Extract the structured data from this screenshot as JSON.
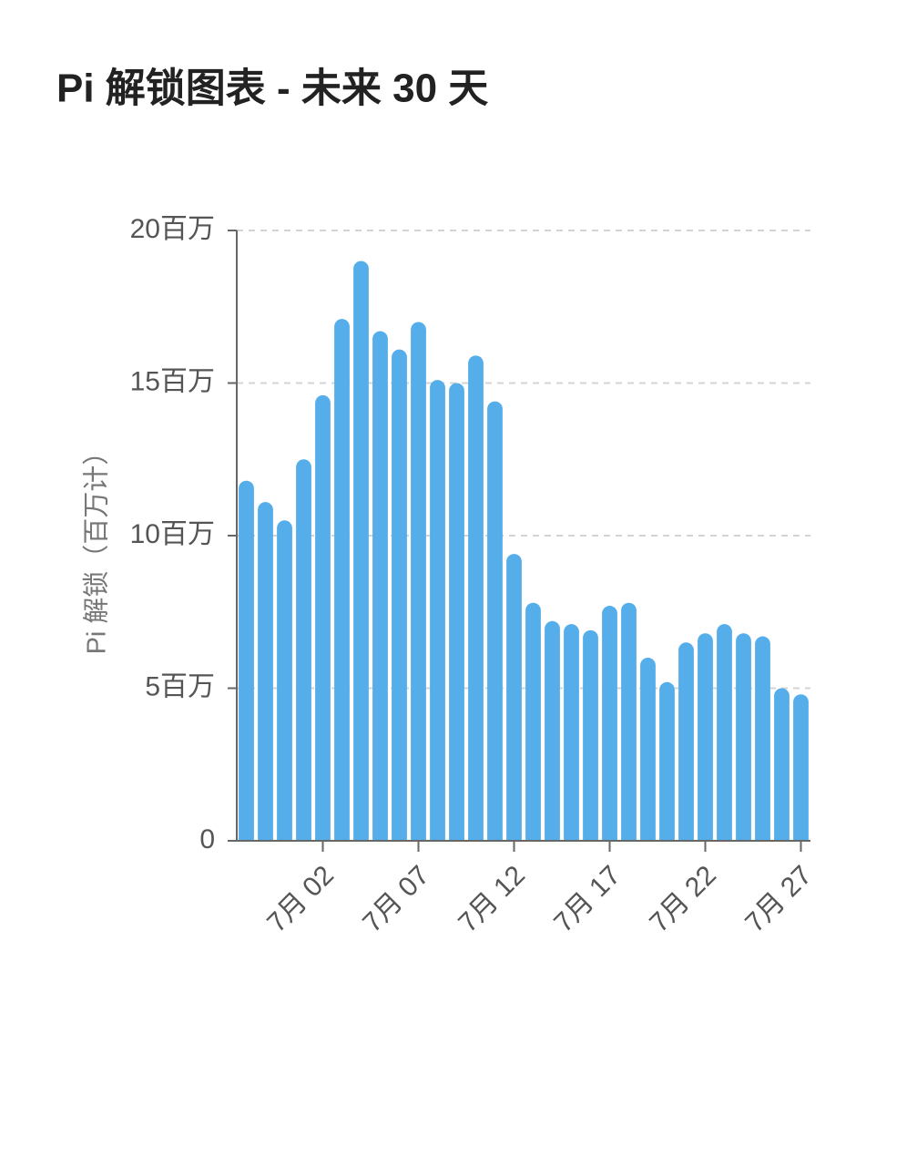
{
  "chart_data": {
    "type": "bar",
    "title": "Pi 解锁图表 - 未来 30 天",
    "y_label": "Pi 解锁（百万计）",
    "categories": [
      null,
      null,
      null,
      null,
      "7月 02",
      null,
      null,
      null,
      null,
      "7月 07",
      null,
      null,
      null,
      null,
      "7月 12",
      null,
      null,
      null,
      null,
      "7月 17",
      null,
      null,
      null,
      null,
      "7月 22",
      null,
      null,
      null,
      null,
      "7月 27"
    ],
    "values": [
      11.8,
      11.1,
      10.5,
      12.5,
      14.6,
      17.1,
      19.0,
      16.7,
      16.1,
      17.0,
      15.1,
      15.0,
      15.9,
      14.4,
      9.4,
      7.8,
      7.2,
      7.1,
      6.9,
      7.7,
      7.8,
      6.0,
      5.2,
      6.5,
      6.8,
      7.1,
      6.8,
      6.7,
      5.0,
      4.8
    ],
    "color": "#55aeea",
    "ylim": [
      0,
      20
    ],
    "yticks": [
      0,
      {
        "value": 5,
        "label": "5百万"
      },
      {
        "value": 10,
        "label": "10百万"
      },
      {
        "value": 15,
        "label": "15百万"
      },
      {
        "value": 20,
        "label": "20百万"
      }
    ],
    "grid": true
  }
}
